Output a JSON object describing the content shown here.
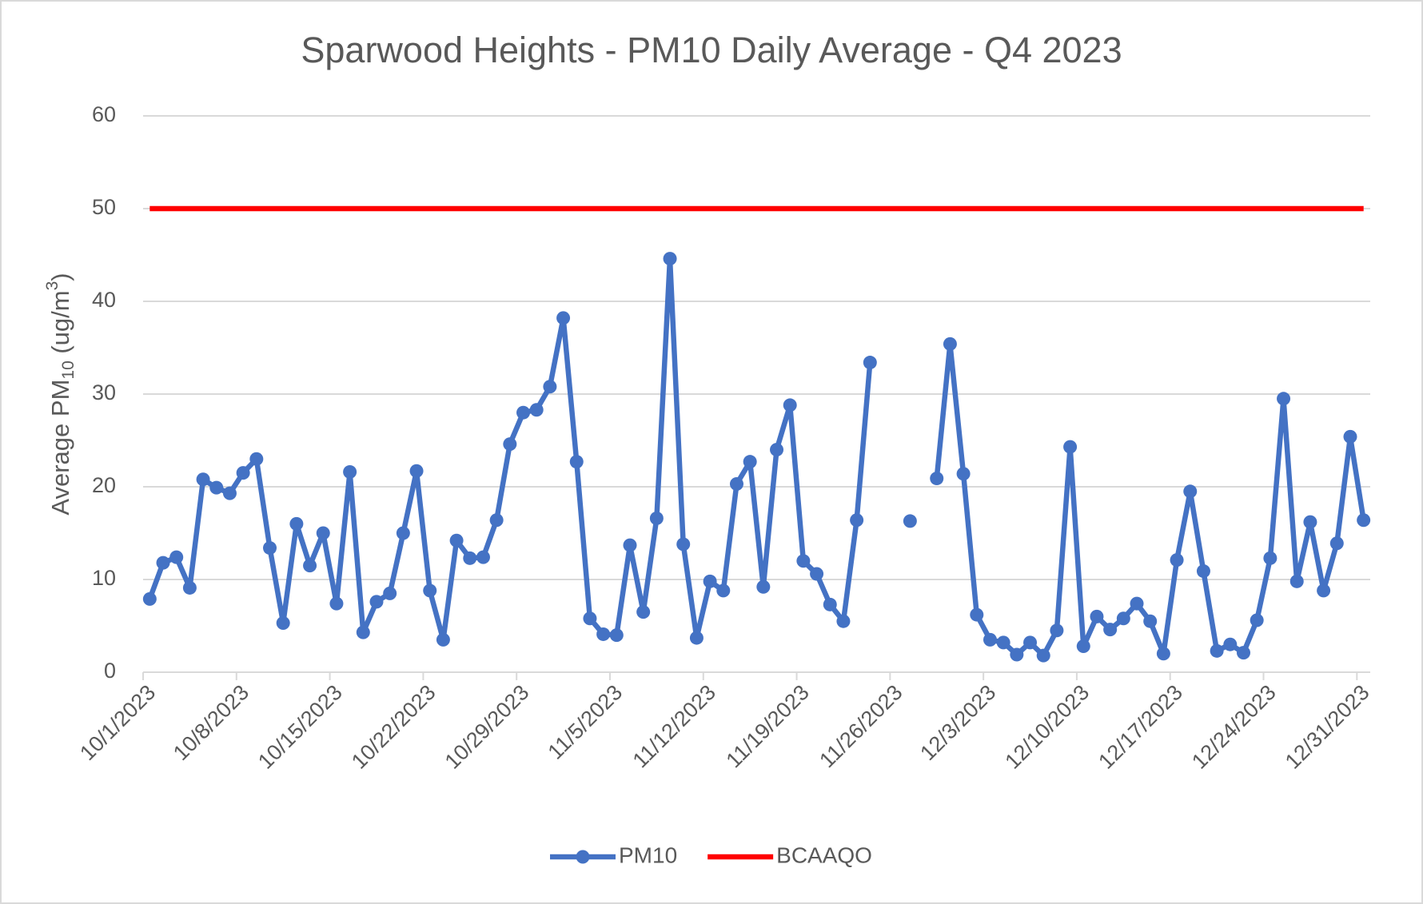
{
  "chart_data": {
    "type": "line",
    "title": "Sparwood Heights - PM10 Daily Average - Q4 2023",
    "ylabel_parts": [
      "Average PM",
      "10",
      " (ug/m",
      "3",
      ")"
    ],
    "categories": [
      "10/1/2023",
      null,
      null,
      null,
      null,
      null,
      null,
      "10/8/2023",
      null,
      null,
      null,
      null,
      null,
      null,
      "10/15/2023",
      null,
      null,
      null,
      null,
      null,
      null,
      "10/22/2023",
      null,
      null,
      null,
      null,
      null,
      null,
      "10/29/2023",
      null,
      null,
      null,
      null,
      null,
      null,
      "11/5/2023",
      null,
      null,
      null,
      null,
      null,
      null,
      "11/12/2023",
      null,
      null,
      null,
      null,
      null,
      null,
      "11/19/2023",
      null,
      null,
      null,
      null,
      null,
      null,
      "11/26/2023",
      null,
      null,
      null,
      null,
      null,
      null,
      "12/3/2023",
      null,
      null,
      null,
      null,
      null,
      null,
      "12/10/2023",
      null,
      null,
      null,
      null,
      null,
      null,
      "12/17/2023",
      null,
      null,
      null,
      null,
      null,
      null,
      "12/24/2023",
      null,
      null,
      null,
      null,
      null,
      null,
      "12/31/2023"
    ],
    "series": [
      {
        "name": "PM10",
        "color": "#4472c4",
        "markers": true,
        "values": [
          7.9,
          11.8,
          12.4,
          9.1,
          20.8,
          19.9,
          19.3,
          21.5,
          23.0,
          13.4,
          5.3,
          16.0,
          11.5,
          15.0,
          7.4,
          21.6,
          4.3,
          7.6,
          8.5,
          15.0,
          21.7,
          8.8,
          3.5,
          14.2,
          12.3,
          12.4,
          16.4,
          24.6,
          28.0,
          28.3,
          30.8,
          38.2,
          22.7,
          5.8,
          4.1,
          4.0,
          13.7,
          6.5,
          16.6,
          44.6,
          13.8,
          3.7,
          9.8,
          8.8,
          20.3,
          22.7,
          9.2,
          24.0,
          28.8,
          12.0,
          10.6,
          7.3,
          5.5,
          16.4,
          33.4,
          null,
          null,
          16.3,
          null,
          20.9,
          35.4,
          21.4,
          6.2,
          3.5,
          3.2,
          1.9,
          3.2,
          1.8,
          4.5,
          24.3,
          2.8,
          6.0,
          4.6,
          5.8,
          7.4,
          5.5,
          2.0,
          12.1,
          19.5,
          10.9,
          2.3,
          3.0,
          2.1,
          5.6,
          12.3,
          29.5,
          9.8,
          16.2,
          8.8,
          13.9,
          25.4,
          16.4
        ]
      },
      {
        "name": "BCAAQO",
        "color": "#ff0000",
        "markers": false,
        "values": [
          50,
          50,
          50,
          50,
          50,
          50,
          50,
          50,
          50,
          50,
          50,
          50,
          50,
          50,
          50,
          50,
          50,
          50,
          50,
          50,
          50,
          50,
          50,
          50,
          50,
          50,
          50,
          50,
          50,
          50,
          50,
          50,
          50,
          50,
          50,
          50,
          50,
          50,
          50,
          50,
          50,
          50,
          50,
          50,
          50,
          50,
          50,
          50,
          50,
          50,
          50,
          50,
          50,
          50,
          50,
          50,
          50,
          50,
          50,
          50,
          50,
          50,
          50,
          50,
          50,
          50,
          50,
          50,
          50,
          50,
          50,
          50,
          50,
          50,
          50,
          50,
          50,
          50,
          50,
          50,
          50,
          50,
          50,
          50,
          50,
          50,
          50,
          50,
          50,
          50,
          50,
          50
        ]
      }
    ],
    "ylim": [
      0,
      60
    ],
    "yticks": [
      0,
      10,
      20,
      30,
      40,
      50,
      60
    ],
    "grid": true,
    "legend": "bottom"
  }
}
